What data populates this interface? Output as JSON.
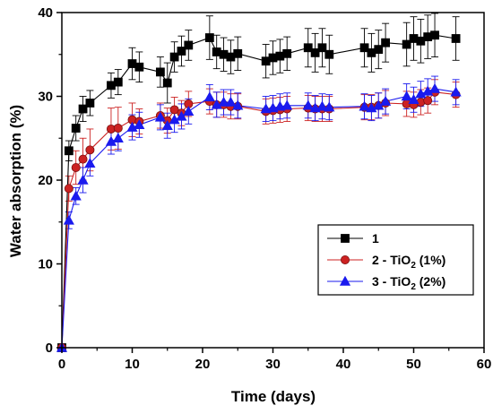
{
  "chart_data": {
    "type": "scatter",
    "xlabel": "Time (days)",
    "ylabel": "Water absorption (%)",
    "xlim": [
      0,
      60
    ],
    "ylim": [
      0,
      40
    ],
    "xticks": [
      0,
      10,
      20,
      30,
      40,
      50,
      60
    ],
    "yticks": [
      0,
      10,
      20,
      30,
      40
    ],
    "grid": false,
    "legend_position": "center-right",
    "series": [
      {
        "name": "1",
        "subscript": "",
        "suffix": "",
        "color": "#000000",
        "marker": "square",
        "points": [
          [
            0,
            0,
            0
          ],
          [
            1,
            23.5,
            1.2
          ],
          [
            2,
            26.2,
            1.5
          ],
          [
            3,
            28.5,
            1.5
          ],
          [
            4,
            29.2,
            1.5
          ],
          [
            7,
            31.3,
            1.5
          ],
          [
            8,
            31.7,
            1.5
          ],
          [
            10,
            33.9,
            1.9
          ],
          [
            11,
            33.5,
            1.8
          ],
          [
            14,
            32.9,
            1.8
          ],
          [
            15,
            31.6,
            2.4
          ],
          [
            16,
            34.7,
            1.8
          ],
          [
            17,
            35.4,
            1.8
          ],
          [
            18,
            36.1,
            1.8
          ],
          [
            21,
            37.0,
            2.6
          ],
          [
            22,
            35.3,
            2.0
          ],
          [
            23,
            35.0,
            2.0
          ],
          [
            24,
            34.7,
            2.0
          ],
          [
            25,
            35.1,
            2.0
          ],
          [
            29,
            34.2,
            2.0
          ],
          [
            30,
            34.6,
            2.0
          ],
          [
            31,
            34.8,
            2.0
          ],
          [
            32,
            35.1,
            2.0
          ],
          [
            35,
            35.8,
            2.3
          ],
          [
            36,
            35.2,
            2.3
          ],
          [
            37,
            35.8,
            2.3
          ],
          [
            38,
            35.0,
            2.3
          ],
          [
            43,
            35.8,
            2.3
          ],
          [
            44,
            35.2,
            2.3
          ],
          [
            45,
            35.6,
            2.3
          ],
          [
            46,
            36.4,
            2.3
          ],
          [
            49,
            36.2,
            2.6
          ],
          [
            50,
            36.9,
            2.6
          ],
          [
            51,
            36.6,
            2.6
          ],
          [
            52,
            37.1,
            2.6
          ],
          [
            53,
            37.3,
            2.6
          ],
          [
            56,
            36.9,
            2.6
          ]
        ]
      },
      {
        "name": "2 - TiO",
        "subscript": "2",
        "suffix": " (1%)",
        "color": "#cc2222",
        "marker": "circle",
        "points": [
          [
            0,
            0,
            0
          ],
          [
            1,
            19.0,
            1.5
          ],
          [
            2,
            21.5,
            2.0
          ],
          [
            3,
            22.5,
            2.5
          ],
          [
            4,
            23.6,
            2.5
          ],
          [
            7,
            26.1,
            2.5
          ],
          [
            8,
            26.2,
            2.5
          ],
          [
            10,
            27.2,
            2.0
          ],
          [
            11,
            27.0,
            1.5
          ],
          [
            14,
            27.7,
            1.5
          ],
          [
            15,
            27.1,
            1.5
          ],
          [
            16,
            28.4,
            1.5
          ],
          [
            17,
            28.0,
            1.5
          ],
          [
            18,
            29.1,
            1.5
          ],
          [
            21,
            29.4,
            1.5
          ],
          [
            22,
            29.0,
            1.5
          ],
          [
            23,
            29.0,
            1.5
          ],
          [
            24,
            28.8,
            1.5
          ],
          [
            25,
            28.8,
            1.5
          ],
          [
            29,
            28.2,
            1.5
          ],
          [
            30,
            28.3,
            1.5
          ],
          [
            31,
            28.4,
            1.5
          ],
          [
            32,
            28.5,
            1.5
          ],
          [
            35,
            28.6,
            1.5
          ],
          [
            36,
            28.5,
            1.5
          ],
          [
            37,
            28.5,
            1.5
          ],
          [
            38,
            28.5,
            1.5
          ],
          [
            43,
            28.7,
            1.5
          ],
          [
            44,
            28.7,
            1.5
          ],
          [
            45,
            28.9,
            1.5
          ],
          [
            46,
            29.2,
            1.5
          ],
          [
            49,
            29.1,
            1.5
          ],
          [
            50,
            29.0,
            1.5
          ],
          [
            51,
            29.3,
            1.5
          ],
          [
            52,
            29.5,
            1.5
          ],
          [
            53,
            30.5,
            1.5
          ],
          [
            56,
            30.2,
            1.5
          ]
        ]
      },
      {
        "name": "3 - TiO",
        "subscript": "2",
        "suffix": " (2%)",
        "color": "#1a1aee",
        "marker": "triangle",
        "points": [
          [
            0,
            0,
            0
          ],
          [
            1,
            15.2,
            1.0
          ],
          [
            2,
            18.1,
            1.0
          ],
          [
            3,
            20.0,
            1.5
          ],
          [
            4,
            22.0,
            1.5
          ],
          [
            7,
            24.6,
            1.5
          ],
          [
            8,
            25.0,
            1.5
          ],
          [
            10,
            26.3,
            1.5
          ],
          [
            11,
            26.6,
            1.5
          ],
          [
            14,
            27.5,
            1.5
          ],
          [
            15,
            26.5,
            1.5
          ],
          [
            16,
            27.2,
            1.5
          ],
          [
            17,
            27.6,
            1.5
          ],
          [
            18,
            28.2,
            1.5
          ],
          [
            21,
            29.9,
            1.5
          ],
          [
            22,
            29.0,
            1.5
          ],
          [
            23,
            29.3,
            1.5
          ],
          [
            24,
            29.3,
            1.5
          ],
          [
            25,
            28.9,
            1.5
          ],
          [
            29,
            28.5,
            1.5
          ],
          [
            30,
            28.6,
            1.5
          ],
          [
            31,
            28.8,
            1.5
          ],
          [
            32,
            28.9,
            1.5
          ],
          [
            35,
            28.9,
            1.5
          ],
          [
            36,
            28.6,
            1.5
          ],
          [
            37,
            28.8,
            1.5
          ],
          [
            38,
            28.7,
            1.5
          ],
          [
            43,
            28.8,
            1.5
          ],
          [
            44,
            28.6,
            1.5
          ],
          [
            45,
            28.9,
            1.5
          ],
          [
            46,
            29.4,
            1.5
          ],
          [
            49,
            30.0,
            1.5
          ],
          [
            50,
            29.6,
            1.5
          ],
          [
            51,
            30.3,
            1.5
          ],
          [
            52,
            30.6,
            1.5
          ],
          [
            53,
            30.9,
            1.5
          ],
          [
            56,
            30.5,
            1.5
          ]
        ]
      }
    ]
  }
}
